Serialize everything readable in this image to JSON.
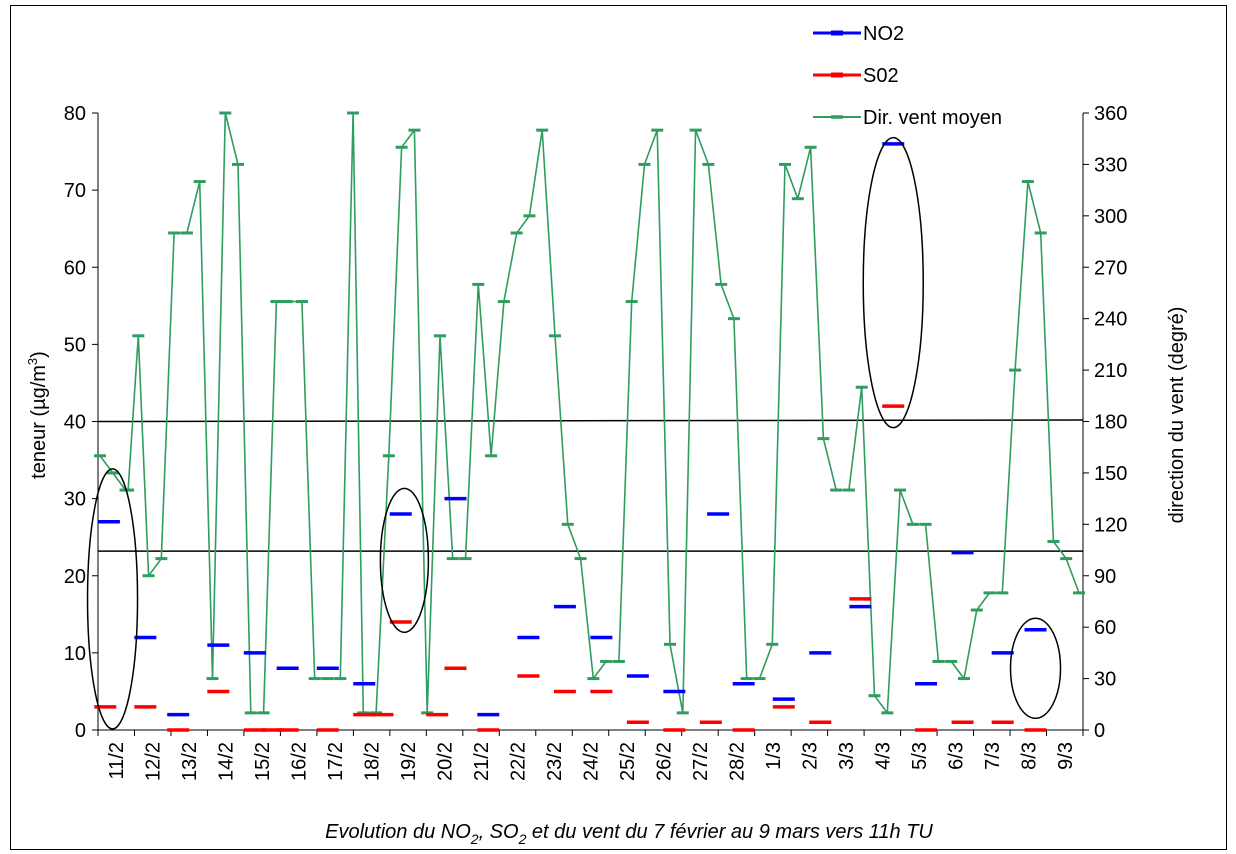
{
  "chart_data": {
    "type": "line",
    "title": "",
    "caption": {
      "pre": "Evolution du NO",
      "sub1": "2",
      "mid": ", SO",
      "sub2": "2",
      "post": " et du vent du 7 février au 9 mars vers 11h TU"
    },
    "ylabel": {
      "main": "teneur (µg/m",
      "sup": "3",
      "close": ")"
    },
    "y2label": "direction du vent (degré)",
    "ylim": [
      0,
      80
    ],
    "y2lim": [
      0,
      360
    ],
    "yticks": [
      "0",
      "10",
      "20",
      "30",
      "40",
      "50",
      "60",
      "70",
      "80"
    ],
    "y2ticks": [
      "0",
      "30",
      "60",
      "90",
      "120",
      "150",
      "180",
      "210",
      "240",
      "270",
      "300",
      "330",
      "360"
    ],
    "categories": [
      "11/2",
      "12/2",
      "13/2",
      "14/2",
      "15/2",
      "16/2",
      "17/2",
      "18/2",
      "19/2",
      "20/2",
      "21/2",
      "22/2",
      "23/2",
      "24/2",
      "25/2",
      "26/2",
      "27/2",
      "28/2",
      "1/3",
      "2/3",
      "3/3",
      "4/3",
      "5/3",
      "6/3",
      "7/3",
      "8/3",
      "9/3"
    ],
    "threshold_lines": [
      40,
      23.2
    ],
    "series": [
      {
        "name": "NO2",
        "color": "#0000ff",
        "style": "dash",
        "axis": "left",
        "points": [
          [
            0.1,
            27
          ],
          [
            1.1,
            12
          ],
          [
            2.0,
            2
          ],
          [
            3.1,
            11
          ],
          [
            4.1,
            10
          ],
          [
            5.0,
            8
          ],
          [
            6.1,
            8
          ],
          [
            7.1,
            6
          ],
          [
            8.1,
            28
          ],
          [
            9.6,
            30
          ],
          [
            10.5,
            2
          ],
          [
            11.6,
            12
          ],
          [
            12.6,
            16
          ],
          [
            13.6,
            12
          ],
          [
            14.6,
            7
          ],
          [
            15.6,
            5
          ],
          [
            16.8,
            28
          ],
          [
            17.5,
            6
          ],
          [
            18.6,
            4
          ],
          [
            19.6,
            10
          ],
          [
            20.7,
            16
          ],
          [
            21.6,
            76
          ],
          [
            22.5,
            6
          ],
          [
            23.5,
            23
          ],
          [
            24.6,
            10
          ],
          [
            25.5,
            13
          ]
        ]
      },
      {
        "name": "S02",
        "color": "#ff0000",
        "style": "dash",
        "axis": "left",
        "points": [
          [
            0.0,
            3
          ],
          [
            1.1,
            3
          ],
          [
            2.0,
            0
          ],
          [
            3.1,
            5
          ],
          [
            4.1,
            0
          ],
          [
            4.6,
            0
          ],
          [
            5.0,
            0
          ],
          [
            6.1,
            0
          ],
          [
            7.1,
            2
          ],
          [
            7.6,
            2
          ],
          [
            8.1,
            14
          ],
          [
            9.1,
            2
          ],
          [
            9.6,
            8
          ],
          [
            10.5,
            0
          ],
          [
            11.6,
            7
          ],
          [
            12.6,
            5
          ],
          [
            13.6,
            5
          ],
          [
            14.6,
            1
          ],
          [
            15.6,
            0
          ],
          [
            16.6,
            1
          ],
          [
            17.5,
            0
          ],
          [
            18.6,
            3
          ],
          [
            19.6,
            1
          ],
          [
            20.7,
            17
          ],
          [
            21.6,
            42
          ],
          [
            22.5,
            0
          ],
          [
            23.5,
            1
          ],
          [
            24.6,
            1
          ],
          [
            25.5,
            0
          ]
        ]
      },
      {
        "name": "Dir. vent moyen",
        "color": "#2e9d5e",
        "style": "line",
        "axis": "right",
        "points": [
          [
            0.0,
            160
          ],
          [
            0.5,
            150
          ],
          [
            1.0,
            140
          ],
          [
            1.1,
            140
          ],
          [
            1.5,
            230
          ],
          [
            1.9,
            90
          ],
          [
            2.4,
            100
          ],
          [
            2.9,
            290
          ],
          [
            3.4,
            290
          ],
          [
            3.9,
            320
          ],
          [
            4.4,
            30
          ],
          [
            4.9,
            360
          ],
          [
            5.4,
            330
          ],
          [
            5.9,
            10
          ],
          [
            6.4,
            10
          ],
          [
            6.9,
            250
          ],
          [
            7.3,
            250
          ],
          [
            7.9,
            250
          ],
          [
            8.4,
            30
          ],
          [
            8.9,
            30
          ],
          [
            9.4,
            30
          ],
          [
            9.9,
            360
          ],
          [
            10.3,
            10
          ],
          [
            10.8,
            10
          ],
          [
            11.3,
            160
          ],
          [
            11.8,
            340
          ],
          [
            12.3,
            350
          ],
          [
            12.8,
            10
          ],
          [
            13.3,
            230
          ],
          [
            13.8,
            100
          ],
          [
            14.3,
            100
          ],
          [
            14.8,
            260
          ],
          [
            15.3,
            160
          ],
          [
            15.8,
            250
          ],
          [
            16.3,
            290
          ],
          [
            16.8,
            300
          ],
          [
            17.3,
            350
          ],
          [
            17.8,
            230
          ],
          [
            18.3,
            120
          ],
          [
            18.8,
            100
          ],
          [
            19.3,
            30
          ],
          [
            19.8,
            40
          ],
          [
            20.3,
            40
          ],
          [
            20.8,
            250
          ],
          [
            21.3,
            330
          ],
          [
            21.8,
            350
          ],
          [
            22.3,
            50
          ],
          [
            22.8,
            10
          ],
          [
            23.3,
            350
          ],
          [
            23.8,
            330
          ],
          [
            24.3,
            260
          ],
          [
            24.8,
            240
          ],
          [
            25.3,
            30
          ],
          [
            25.8,
            30
          ],
          [
            26.3,
            50
          ],
          [
            26.8,
            330
          ],
          [
            27.3,
            310
          ],
          [
            27.8,
            340
          ],
          [
            28.3,
            170
          ],
          [
            28.8,
            140
          ],
          [
            29.3,
            140
          ],
          [
            29.8,
            200
          ],
          [
            30.3,
            20
          ],
          [
            30.8,
            10
          ],
          [
            31.3,
            140
          ],
          [
            31.8,
            120
          ],
          [
            32.3,
            120
          ],
          [
            32.8,
            40
          ],
          [
            33.3,
            40
          ],
          [
            33.8,
            30
          ],
          [
            34.3,
            70
          ],
          [
            34.8,
            80
          ],
          [
            35.3,
            80
          ],
          [
            35.8,
            210
          ],
          [
            36.3,
            320
          ],
          [
            36.8,
            290
          ],
          [
            37.3,
            110
          ],
          [
            37.8,
            100
          ],
          [
            38.3,
            80
          ]
        ]
      }
    ],
    "legend": {
      "placement": "top-right",
      "entries": [
        "NO2",
        "S02",
        "Dir. vent moyen"
      ]
    },
    "ellipses": [
      {
        "x": 0.2,
        "y": 17
      },
      {
        "x": 8.2,
        "y": 22
      },
      {
        "x": 21.6,
        "y": 58
      },
      {
        "x": 25.5,
        "y": 8
      }
    ]
  }
}
